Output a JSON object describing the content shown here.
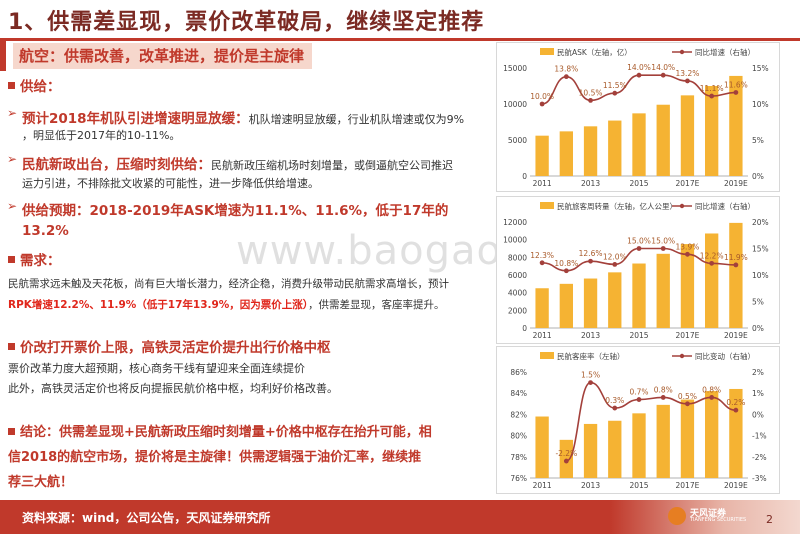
{
  "header": {
    "title": "1、供需差显现，票价改革破局，继续坚定推荐",
    "subtitle": "航空：供需改善，改革推进，提价是主旋律"
  },
  "supply": {
    "heading": "供给：",
    "b1_head": "预计2018年机队引进增速明显放缓：",
    "b1_text1": "机队增速明显放缓，行业机队增速或仅为9%",
    "b1_text2": "，明显低于2017年的10-11%。",
    "b2_head": "民航新政出台，压缩时刻供给：",
    "b2_text1": "民航新政压缩机场时刻增量，或倒逼航空公司推迟",
    "b2_text2": "运力引进，不排除批文收紧的可能性，进一步降低供给增速。",
    "b3_text1": "供给预期：2018-2019年ASK增速为11.1%、11.6%，低于17年的",
    "b3_text2": "13.2%"
  },
  "demand": {
    "heading": "需求：",
    "line1": "民航需求远未触及天花板，尚有巨大增长潜力，经济企稳，消费升级带动民航需求高增长，预计",
    "line2_red": "RPK增速12.2%、11.9%（低于17年13.9%，因为票价上涨）",
    "line2_rest": "，供需差显现，客座率提升。"
  },
  "price": {
    "heading": "价改打开票价上限，高铁灵活定价提升出行价格中枢",
    "line1": "票价改革力度大超预期，核心商务干线有望迎来全面连续提价",
    "line2": "此外，高铁灵活定价也将反向提振民航价格中枢，均利好价格改善。"
  },
  "conclusion": {
    "line1": "结论：供需差显现+民航新政压缩时刻增量+价格中枢存在抬升可能，相",
    "line2": "信2018的航空市场，提价将是主旋律！供需逻辑强于油价汇率，继续推",
    "line3": "荐三大航！"
  },
  "footer": {
    "source": "资料来源：wind，公司公告，天风证券研究所",
    "logo_text": "天风证券",
    "logo_sub": "TIANFENG SECURITIES",
    "page": "2"
  },
  "watermark": "www.baogao8.com",
  "colors": {
    "bar": "#f5b333",
    "line": "#a3403b",
    "accent": "#c0392b"
  },
  "chart_data": [
    {
      "type": "bar",
      "title": "",
      "legend_left": "民航ASK（左轴，亿）",
      "legend_right": "同比增速（右轴）",
      "categories": [
        "2011",
        "2012",
        "2013",
        "2014",
        "2015",
        "2016",
        "2017E",
        "2018E",
        "2019E"
      ],
      "x_labels": [
        "2011",
        "2013",
        "2015",
        "2017E",
        "2019E"
      ],
      "series": [
        {
          "name": "民航ASK（左轴，亿）",
          "kind": "bar",
          "axis": "left",
          "values": [
            5600,
            6200,
            6900,
            7700,
            8700,
            9900,
            11200,
            12500,
            13900
          ]
        },
        {
          "name": "同比增速（右轴）",
          "kind": "line",
          "axis": "right",
          "values": [
            10.0,
            13.8,
            10.5,
            11.5,
            14.0,
            14.0,
            13.2,
            11.1,
            11.6
          ],
          "labels": [
            "10.0%",
            "13.8%",
            "10.5%",
            "11.5%",
            "14.0%",
            "14.0%",
            "13.2%",
            "11.1%",
            "11.6%"
          ]
        }
      ],
      "y_left": {
        "min": 0,
        "max": 15000,
        "ticks": [
          0,
          5000,
          10000,
          15000
        ],
        "tick_labels": [
          "0",
          "5000",
          "10000",
          "15000"
        ]
      },
      "y_right": {
        "min": 0,
        "max": 15,
        "ticks": [
          0,
          5,
          10,
          15
        ],
        "tick_labels": [
          "0%",
          "5%",
          "10%",
          "15%"
        ]
      }
    },
    {
      "type": "bar",
      "title": "",
      "legend_left": "民航旅客周转量（左轴，亿人公里）",
      "legend_right": "同比增速（右轴）",
      "categories": [
        "2011",
        "2012",
        "2013",
        "2014",
        "2015",
        "2016",
        "2017E",
        "2018E",
        "2019E"
      ],
      "x_labels": [
        "2011",
        "2013",
        "2015",
        "2017E",
        "2019E"
      ],
      "series": [
        {
          "name": "民航旅客周转量（左轴，亿人公里）",
          "kind": "bar",
          "axis": "left",
          "values": [
            4500,
            5000,
            5600,
            6300,
            7300,
            8400,
            9500,
            10700,
            11900
          ]
        },
        {
          "name": "同比增速（右轴）",
          "kind": "line",
          "axis": "right",
          "values": [
            12.3,
            10.8,
            12.6,
            12.0,
            15.0,
            15.0,
            13.9,
            12.2,
            11.9
          ],
          "labels": [
            "12.3%",
            "10.8%",
            "12.6%",
            "12.0%",
            "15.0%",
            "15.0%",
            "13.9%",
            "12.2%",
            "11.9%"
          ]
        }
      ],
      "y_left": {
        "min": 0,
        "max": 12000,
        "ticks": [
          0,
          2000,
          4000,
          6000,
          8000,
          10000,
          12000
        ],
        "tick_labels": [
          "0",
          "2000",
          "4000",
          "6000",
          "8000",
          "10000",
          "12000"
        ]
      },
      "y_right": {
        "min": 0,
        "max": 20,
        "ticks": [
          0,
          5,
          10,
          15,
          20
        ],
        "tick_labels": [
          "0%",
          "5%",
          "10%",
          "15%",
          "20%"
        ]
      }
    },
    {
      "type": "bar",
      "title": "",
      "legend_left": "民航客座率（左轴）",
      "legend_right": "同比变动（右轴）",
      "categories": [
        "2011",
        "2012",
        "2013",
        "2014",
        "2015",
        "2016",
        "2017E",
        "2018E",
        "2019E"
      ],
      "x_labels": [
        "2011",
        "2013",
        "2015",
        "2017E",
        "2019E"
      ],
      "series": [
        {
          "name": "民航客座率（左轴）",
          "kind": "bar",
          "axis": "left",
          "values": [
            81.8,
            79.6,
            81.1,
            81.4,
            82.1,
            82.9,
            83.4,
            84.2,
            84.4
          ]
        },
        {
          "name": "同比变动（右轴）",
          "kind": "line",
          "axis": "right",
          "values": [
            null,
            -2.2,
            1.5,
            0.3,
            0.7,
            0.8,
            0.5,
            0.8,
            0.2
          ],
          "labels": [
            "",
            "-2.2%",
            "1.5%",
            "0.3%",
            "0.7%",
            "0.8%",
            "0.5%",
            "0.8%",
            "0.2%"
          ]
        }
      ],
      "y_left": {
        "min": 76,
        "max": 86,
        "ticks": [
          76,
          78,
          80,
          82,
          84,
          86
        ],
        "tick_labels": [
          "76%",
          "78%",
          "80%",
          "82%",
          "84%",
          "86%"
        ]
      },
      "y_right": {
        "min": -3,
        "max": 2,
        "ticks": [
          -3,
          -2,
          -1,
          0,
          1,
          2
        ],
        "tick_labels": [
          "-3%",
          "-2%",
          "-1%",
          "0%",
          "1%",
          "2%"
        ]
      }
    }
  ]
}
